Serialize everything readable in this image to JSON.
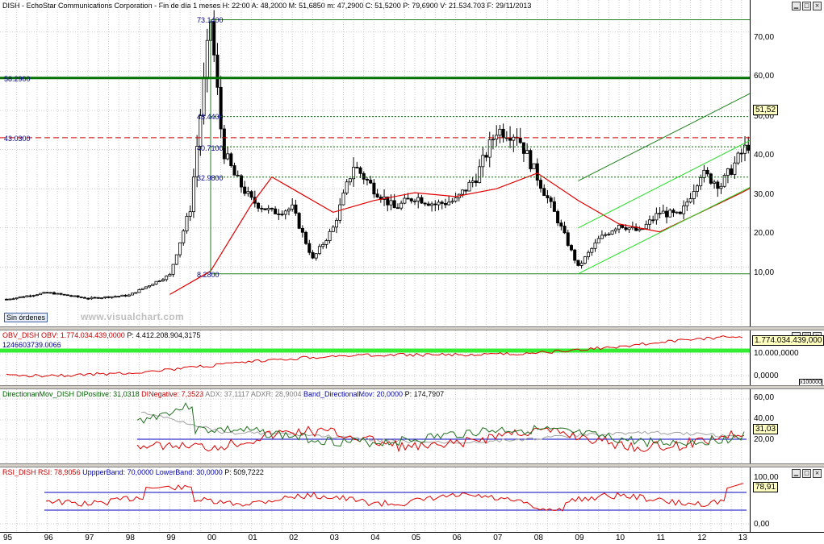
{
  "header": {
    "text": "DISH - EchoStar Communications Corporation - Fin de día 1 meses H: 22:00 A: 48,2000 M: 51,6850 m: 47,2900 C: 51,5200 P: 79,6900 V: 21.534.703 F: 29/11/2013"
  },
  "main": {
    "sin_ordenes": "Sin órdenes",
    "watermark": "www.visualchart.com",
    "last_price_label": "51,52",
    "y_ticks": [
      "70,00",
      "60,00",
      "50,00",
      "40,00",
      "30,00",
      "20,00",
      "10,00"
    ],
    "annotations": {
      "high": "73.1400",
      "low": "8.2800",
      "h58": "58.2900",
      "h43": "43.0300",
      "f1": "48.4400",
      "f2": "40.7100",
      "f3": "32.9800"
    }
  },
  "obv": {
    "header": {
      "name": "OBV_DISH",
      "obv": "OBV: 1.774.034.439,0000",
      "p": "P: 4.412.208.904,3175"
    },
    "line_label": "1246603739.0066",
    "last_label": "1.774.034.439,000",
    "y_ticks": [
      "10.000,0000",
      "0,0000"
    ],
    "scale_tag": "x100000"
  },
  "dm": {
    "header": {
      "name": "DirectionanMov_DISH",
      "dip": "DIPositive: 31,0318",
      "din": "DINegative: 7,3523",
      "adx": "ADX: 37,1117",
      "adxr": "ADXR: 28,9004",
      "band": "Band_DirectionalMov: 20,0000",
      "p": "P: 174,7907"
    },
    "last_label": "31,03",
    "y_ticks": [
      "60,00",
      "40,00",
      "20,00"
    ]
  },
  "rsi": {
    "header": {
      "name": "RSI_DISH",
      "rsi": "RSI: 78,9056",
      "upper": "UppperBand: 70,0000",
      "lower": "LowerBand: 30,0000",
      "p": "P: 509,7222"
    },
    "last_label": "78,91",
    "y_ticks": [
      "100,00",
      "0,00"
    ]
  },
  "chart_data": {
    "type": "candlestick",
    "x": [
      "95",
      "96",
      "97",
      "98",
      "99",
      "00",
      "01",
      "02",
      "03",
      "04",
      "05",
      "06",
      "07",
      "08",
      "09",
      "10",
      "11",
      "12",
      "13"
    ],
    "close_path": [
      [
        "95",
        1.8
      ],
      [
        "96",
        3.5
      ],
      [
        "97",
        2.0
      ],
      [
        "98",
        2.8
      ],
      [
        "99",
        8
      ],
      [
        "99.5",
        25
      ],
      [
        "00",
        73
      ],
      [
        "00.3",
        40
      ],
      [
        "00.6",
        33
      ],
      [
        "01",
        27
      ],
      [
        "01.5",
        24
      ],
      [
        "02",
        25
      ],
      [
        "02.5",
        12
      ],
      [
        "03",
        20
      ],
      [
        "03.5",
        36
      ],
      [
        "04",
        30
      ],
      [
        "04.5",
        25
      ],
      [
        "05",
        28
      ],
      [
        "05.5",
        26
      ],
      [
        "06",
        27
      ],
      [
        "06.5",
        33
      ],
      [
        "07",
        45
      ],
      [
        "07.5",
        44
      ],
      [
        "08",
        33
      ],
      [
        "08.5",
        22
      ],
      [
        "09",
        10
      ],
      [
        "09.5",
        17
      ],
      [
        "10",
        21
      ],
      [
        "10.5",
        19
      ],
      [
        "11",
        24
      ],
      [
        "11.5",
        23
      ],
      [
        "12",
        34
      ],
      [
        "12.5",
        31
      ],
      [
        "13",
        39
      ],
      [
        "13.9",
        51.52
      ]
    ],
    "moving_average": [
      [
        "99",
        3
      ],
      [
        "00",
        9
      ],
      [
        "01",
        26
      ],
      [
        "01.5",
        33
      ],
      [
        "02",
        30
      ],
      [
        "03",
        24
      ],
      [
        "04",
        27
      ],
      [
        "05",
        29
      ],
      [
        "06",
        28
      ],
      [
        "07",
        30
      ],
      [
        "08",
        34
      ],
      [
        "09",
        27
      ],
      [
        "10",
        21
      ],
      [
        "11",
        19
      ],
      [
        "12",
        24
      ],
      [
        "13",
        29
      ],
      [
        "13.9",
        34
      ]
    ],
    "ylim": [
      0,
      76
    ],
    "horizontal_lines": [
      58.29,
      43.03
    ],
    "fib_levels": [
      48.44,
      40.71,
      32.98
    ],
    "range_high": 73.14,
    "range_low": 8.28
  },
  "colors": {
    "accent_green": "#008000",
    "light_green": "#22dd22",
    "ma_red": "#e00000",
    "band_blue": "#0000c0"
  }
}
